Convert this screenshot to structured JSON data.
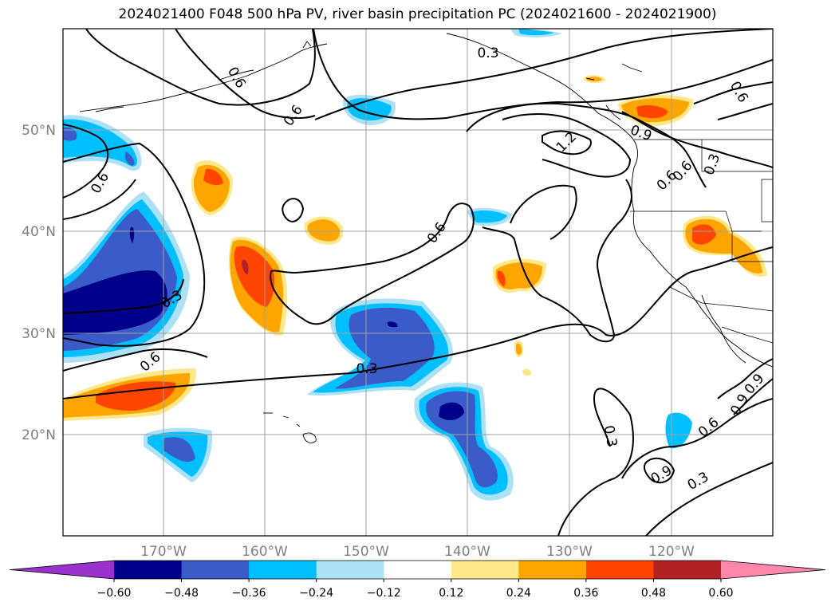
{
  "title": "2024021400 F048 500 hPa PV, river basin precipitation PC (2024021600 - 2024021900)",
  "map": {
    "lat_labels": [
      "50°N",
      "40°N",
      "30°N",
      "20°N"
    ],
    "lon_labels": [
      "170°W",
      "160°W",
      "150°W",
      "140°W",
      "130°W",
      "120°W"
    ],
    "contour_labels": [
      "0.3",
      "0.6",
      "0.6",
      "0.6",
      "0.6",
      "0.9",
      "1.2",
      "0.6",
      "0.3",
      "0.6",
      "0.3",
      "0.6",
      "0.3",
      "0.6",
      "0.9",
      "0.3",
      "0.6",
      "0.9",
      "0.9",
      "0.3"
    ]
  },
  "colorbar": {
    "ticks": [
      "−0.60",
      "−0.48",
      "−0.36",
      "−0.24",
      "−0.12",
      "0.12",
      "0.24",
      "0.36",
      "0.48",
      "0.60"
    ],
    "colors": [
      "#9932CC",
      "#00008B",
      "#3A5BC8",
      "#00BFFF",
      "#ADE1F8",
      "#FFFFFF",
      "#FFE88A",
      "#FFA500",
      "#FF4500",
      "#B22222",
      "#FF88AA"
    ]
  },
  "palette": {
    "neg_strong": "#00008B",
    "neg_mid": "#3A5BC8",
    "neg_light": "#00BFFF",
    "neg_pale": "#ADE1F8",
    "pos_pale": "#FFE88A",
    "pos_light": "#FFA500",
    "pos_mid": "#FF4500",
    "pos_strong": "#B22222"
  }
}
